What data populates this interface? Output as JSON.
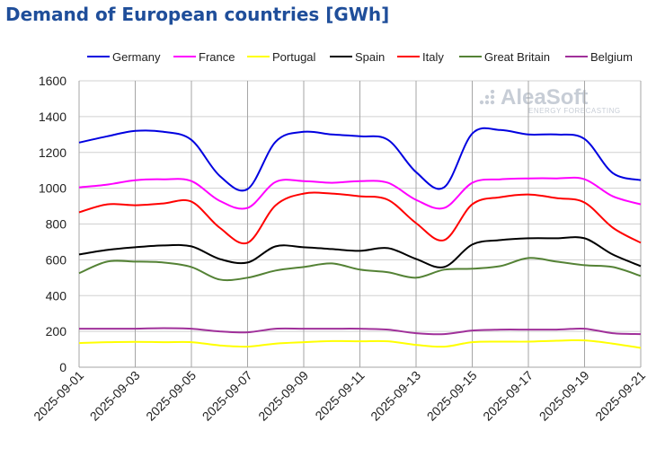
{
  "title": "Demand of European countries [GWh]",
  "watermark": {
    "brand": "AleaSoft",
    "tagline": "ENERGY FORECASTING"
  },
  "chart_data": {
    "type": "line",
    "title": "Demand of European countries [GWh]",
    "xlabel": "",
    "ylabel": "",
    "ylim": [
      0,
      1600
    ],
    "yticks": [
      0,
      200,
      400,
      600,
      800,
      1000,
      1200,
      1400,
      1600
    ],
    "xticks": [
      "2025-09-01",
      "2025-09-03",
      "2025-09-05",
      "2025-09-07",
      "2025-09-09",
      "2025-09-11",
      "2025-09-13",
      "2025-09-15",
      "2025-09-17",
      "2025-09-19",
      "2025-09-21"
    ],
    "x": [
      "2025-09-01",
      "2025-09-02",
      "2025-09-03",
      "2025-09-04",
      "2025-09-05",
      "2025-09-06",
      "2025-09-07",
      "2025-09-08",
      "2025-09-09",
      "2025-09-10",
      "2025-09-11",
      "2025-09-12",
      "2025-09-13",
      "2025-09-14",
      "2025-09-15",
      "2025-09-16",
      "2025-09-17",
      "2025-09-18",
      "2025-09-19",
      "2025-09-20",
      "2025-09-21"
    ],
    "grid": "vertical every 2 days, horizontal every 200",
    "legend_position": "top",
    "series": [
      {
        "name": "Germany",
        "color": "#0000e0",
        "values": [
          1255,
          1290,
          1320,
          1315,
          1270,
          1070,
          995,
          1260,
          1315,
          1300,
          1290,
          1270,
          1090,
          1005,
          1305,
          1325,
          1300,
          1300,
          1275,
          1085,
          1045
        ]
      },
      {
        "name": "France",
        "color": "#ff00ff",
        "values": [
          1005,
          1020,
          1045,
          1050,
          1040,
          930,
          890,
          1035,
          1040,
          1030,
          1040,
          1030,
          935,
          890,
          1030,
          1050,
          1055,
          1055,
          1050,
          955,
          910
        ]
      },
      {
        "name": "Portugal",
        "color": "#ffff00",
        "values": [
          135,
          140,
          142,
          140,
          140,
          122,
          115,
          132,
          140,
          146,
          145,
          145,
          125,
          115,
          140,
          143,
          143,
          148,
          150,
          132,
          108
        ]
      },
      {
        "name": "Spain",
        "color": "#000000",
        "values": [
          630,
          655,
          670,
          680,
          675,
          605,
          585,
          675,
          670,
          660,
          650,
          665,
          605,
          560,
          685,
          710,
          720,
          720,
          720,
          630,
          565
        ]
      },
      {
        "name": "Italy",
        "color": "#ff0000",
        "values": [
          865,
          910,
          905,
          915,
          925,
          780,
          695,
          905,
          970,
          970,
          955,
          935,
          805,
          710,
          910,
          950,
          965,
          945,
          920,
          780,
          695
        ]
      },
      {
        "name": "Great Britain",
        "color": "#548235",
        "values": [
          525,
          590,
          590,
          585,
          560,
          490,
          500,
          540,
          560,
          580,
          545,
          530,
          500,
          545,
          550,
          565,
          610,
          590,
          570,
          560,
          510
        ]
      },
      {
        "name": "Belgium",
        "color": "#a0309a",
        "values": [
          215,
          215,
          215,
          218,
          215,
          200,
          195,
          215,
          215,
          215,
          215,
          210,
          190,
          185,
          205,
          210,
          210,
          210,
          215,
          190,
          185
        ]
      }
    ]
  }
}
